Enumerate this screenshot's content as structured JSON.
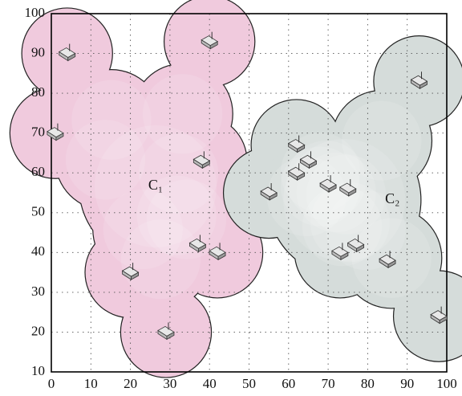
{
  "chart_data": {
    "type": "scatter",
    "xlim": [
      0,
      100
    ],
    "ylim": [
      10,
      100
    ],
    "xticks": [
      0,
      10,
      20,
      30,
      40,
      50,
      60,
      70,
      80,
      90,
      100
    ],
    "yticks": [
      10,
      20,
      30,
      40,
      50,
      60,
      70,
      80,
      90,
      100
    ],
    "grid": true,
    "series": [
      {
        "name": "C₁",
        "color": "#f0cadd",
        "x": [
          4,
          40,
          1,
          38,
          37,
          42,
          20,
          29
        ],
        "values": [
          90,
          93,
          70,
          63,
          42,
          40,
          35,
          20
        ]
      },
      {
        "name": "C₂",
        "color": "#d5dcda",
        "x": [
          93,
          62,
          65,
          62,
          55,
          70,
          75,
          77,
          73,
          85,
          98
        ],
        "values": [
          83,
          67,
          63,
          60,
          55,
          57,
          56,
          42,
          40,
          38,
          24
        ]
      }
    ]
  }
}
